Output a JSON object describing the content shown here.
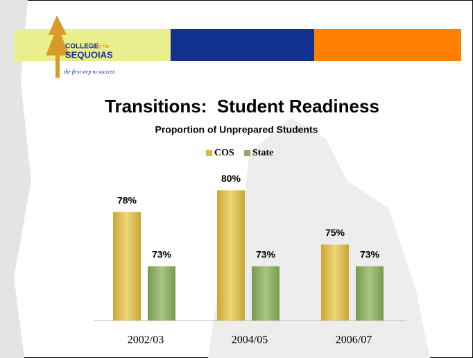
{
  "header": {
    "logo_college": "COLLEGE",
    "logo_of_the": "of the",
    "logo_name": "SEQUOIAS",
    "tagline": "the first step to success"
  },
  "chart_data": {
    "type": "bar",
    "title": "Transitions:  Student Readiness",
    "subtitle": "Proportion of Unprepared Students",
    "categories": [
      "2002/03",
      "2004/05",
      "2006/07"
    ],
    "series": [
      {
        "name": "COS",
        "color": "#d9b94a",
        "values": [
          78,
          80,
          75
        ],
        "value_labels": [
          "78%",
          "80%",
          "75%"
        ]
      },
      {
        "name": "State",
        "color": "#8fae63",
        "values": [
          73,
          73,
          73
        ],
        "value_labels": [
          "73%",
          "73%",
          "73%"
        ]
      }
    ],
    "ylim": [
      68,
      82
    ],
    "legend": "top"
  }
}
